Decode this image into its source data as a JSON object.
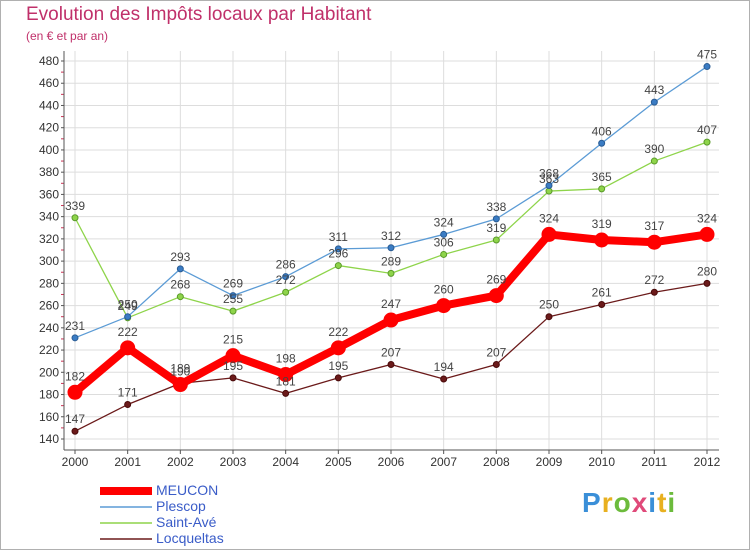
{
  "header": {
    "title": "Evolution des Impôts locaux par Habitant",
    "subtitle": "(en € et par an)"
  },
  "logo": {
    "text": "Proxiti"
  },
  "chart_data": {
    "type": "line",
    "categories": [
      "2000",
      "2001",
      "2002",
      "2003",
      "2004",
      "2005",
      "2006",
      "2007",
      "2008",
      "2009",
      "2010",
      "2011",
      "2012"
    ],
    "ylim": [
      140,
      480
    ],
    "yticks": [
      140,
      160,
      180,
      200,
      220,
      240,
      260,
      280,
      300,
      320,
      340,
      360,
      380,
      400,
      420,
      440,
      460,
      480
    ],
    "grid": true,
    "legend_position": "bottom-left",
    "series": [
      {
        "name": "MEUCON",
        "color": "#ff0000",
        "values": [
          182,
          222,
          189,
          215,
          198,
          222,
          247,
          260,
          269,
          324,
          319,
          317,
          324
        ]
      },
      {
        "name": "Plescop",
        "color": "#5b9bd5",
        "values": [
          231,
          250,
          293,
          269,
          286,
          311,
          312,
          324,
          338,
          368,
          406,
          443,
          475
        ]
      },
      {
        "name": "Saint-Avé",
        "color": "#8ed44a",
        "values": [
          339,
          249,
          268,
          255,
          272,
          296,
          289,
          306,
          319,
          363,
          365,
          390,
          407
        ]
      },
      {
        "name": "Locqueltas",
        "color": "#6b1a1a",
        "values": [
          147,
          171,
          190,
          195,
          181,
          195,
          207,
          194,
          207,
          250,
          261,
          272,
          280
        ]
      }
    ]
  }
}
